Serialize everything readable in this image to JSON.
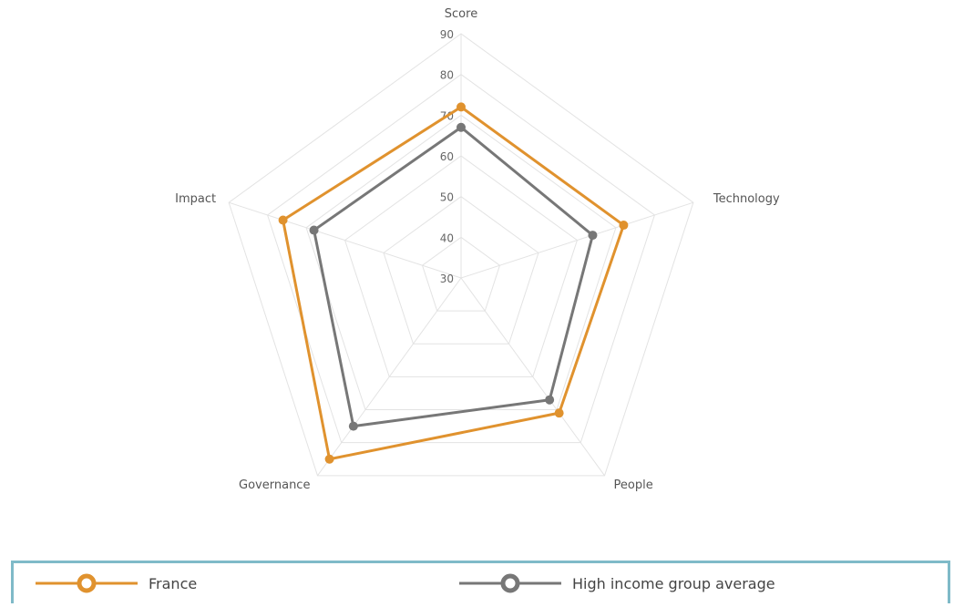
{
  "chart_data": {
    "type": "radar",
    "axes": [
      "Score",
      "Technology",
      "People",
      "Governance",
      "Impact"
    ],
    "rlim": [
      30,
      90
    ],
    "ticks": [
      30,
      40,
      50,
      60,
      70,
      80,
      90
    ],
    "tick_labels": [
      "30",
      "40",
      "50",
      "60",
      "70",
      "80",
      "90"
    ],
    "grid": true,
    "legend_position": "bottom",
    "series": [
      {
        "name": "France",
        "values": [
          72,
          72,
          71,
          85,
          76
        ],
        "color": "#e0922e"
      },
      {
        "name": "High income group average",
        "values": [
          67,
          64,
          67,
          75,
          68
        ],
        "color": "#777777"
      }
    ]
  },
  "colors": {
    "grid": "#e3e3e3",
    "legend_border": "#7fbac8"
  }
}
